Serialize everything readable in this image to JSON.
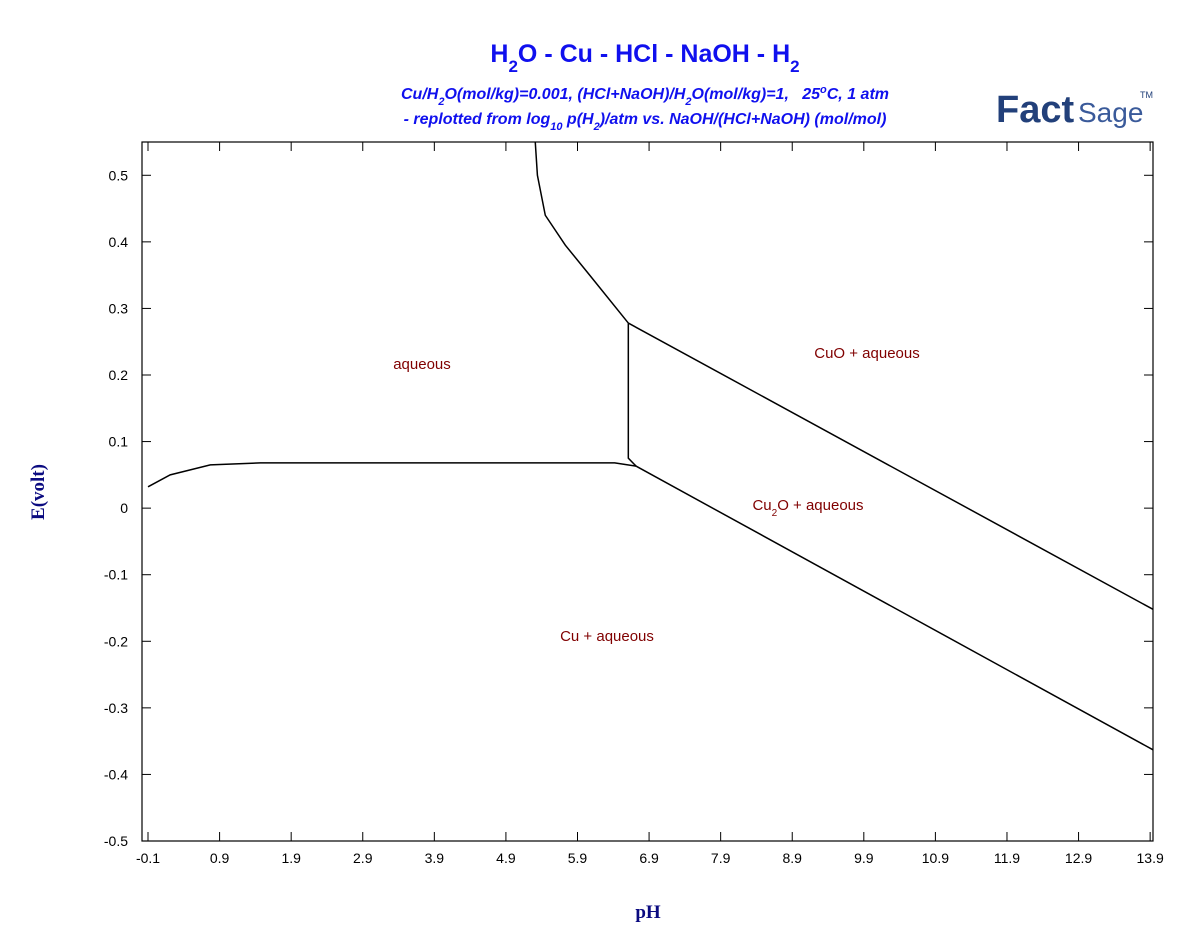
{
  "chart_data": {
    "type": "line",
    "title": [
      "H",
      "2",
      "O - Cu - HCl - NaOH - H",
      "2"
    ],
    "subtitle": [
      [
        "Cu/H",
        "2",
        "O(mol/kg)=0.001, (HCl+NaOH)/H",
        "2",
        "O(mol/kg)=1,   25",
        "o",
        "C, 1 atm"
      ],
      [
        "- replotted from log",
        "10",
        " p(H",
        "2",
        ")/atm vs. NaOH/(HCl+NaOH) (mol/mol)"
      ]
    ],
    "logo": [
      "Fact",
      "Sage",
      "TM"
    ],
    "x_label": "pH",
    "y_label": "E(volt)",
    "annotations": [
      [
        "aqueous"
      ],
      [
        "CuO + aqueous"
      ],
      [
        "Cu",
        "2",
        "O + aqueous"
      ],
      [
        "Cu + aqueous"
      ]
    ],
    "xlim": [
      -0.184,
      13.94
    ],
    "ylim": [
      -0.5,
      0.55
    ],
    "xticks": [
      -0.1,
      0.9,
      1.9,
      2.9,
      3.9,
      4.9,
      5.9,
      6.9,
      7.9,
      8.9,
      9.9,
      10.9,
      11.9,
      12.9,
      13.9
    ],
    "yticks": [
      -0.5,
      -0.4,
      -0.3,
      -0.2,
      -0.1,
      0,
      0.1,
      0.2,
      0.3,
      0.4,
      0.5
    ],
    "series": [
      {
        "color": "#000000",
        "x": [
          5.31,
          5.34,
          5.45,
          5.73,
          6.07,
          6.61
        ],
        "values": [
          0.55,
          0.5,
          0.44,
          0.395,
          0.35,
          0.278
        ]
      },
      {
        "color": "#000000",
        "x": [
          6.61,
          6.61,
          6.72
        ],
        "values": [
          0.278,
          0.075,
          0.063
        ]
      },
      {
        "color": "#000000",
        "x": [
          6.61,
          13.94
        ],
        "values": [
          0.278,
          -0.152
        ]
      },
      {
        "color": "#000000",
        "x": [
          6.72,
          13.94
        ],
        "values": [
          0.063,
          -0.363
        ]
      },
      {
        "color": "#000000",
        "x": [
          -0.1,
          0.21,
          0.77,
          1.47,
          6.42,
          6.72
        ],
        "values": [
          0.032,
          0.05,
          0.065,
          0.068,
          0.068,
          0.063
        ]
      }
    ]
  }
}
